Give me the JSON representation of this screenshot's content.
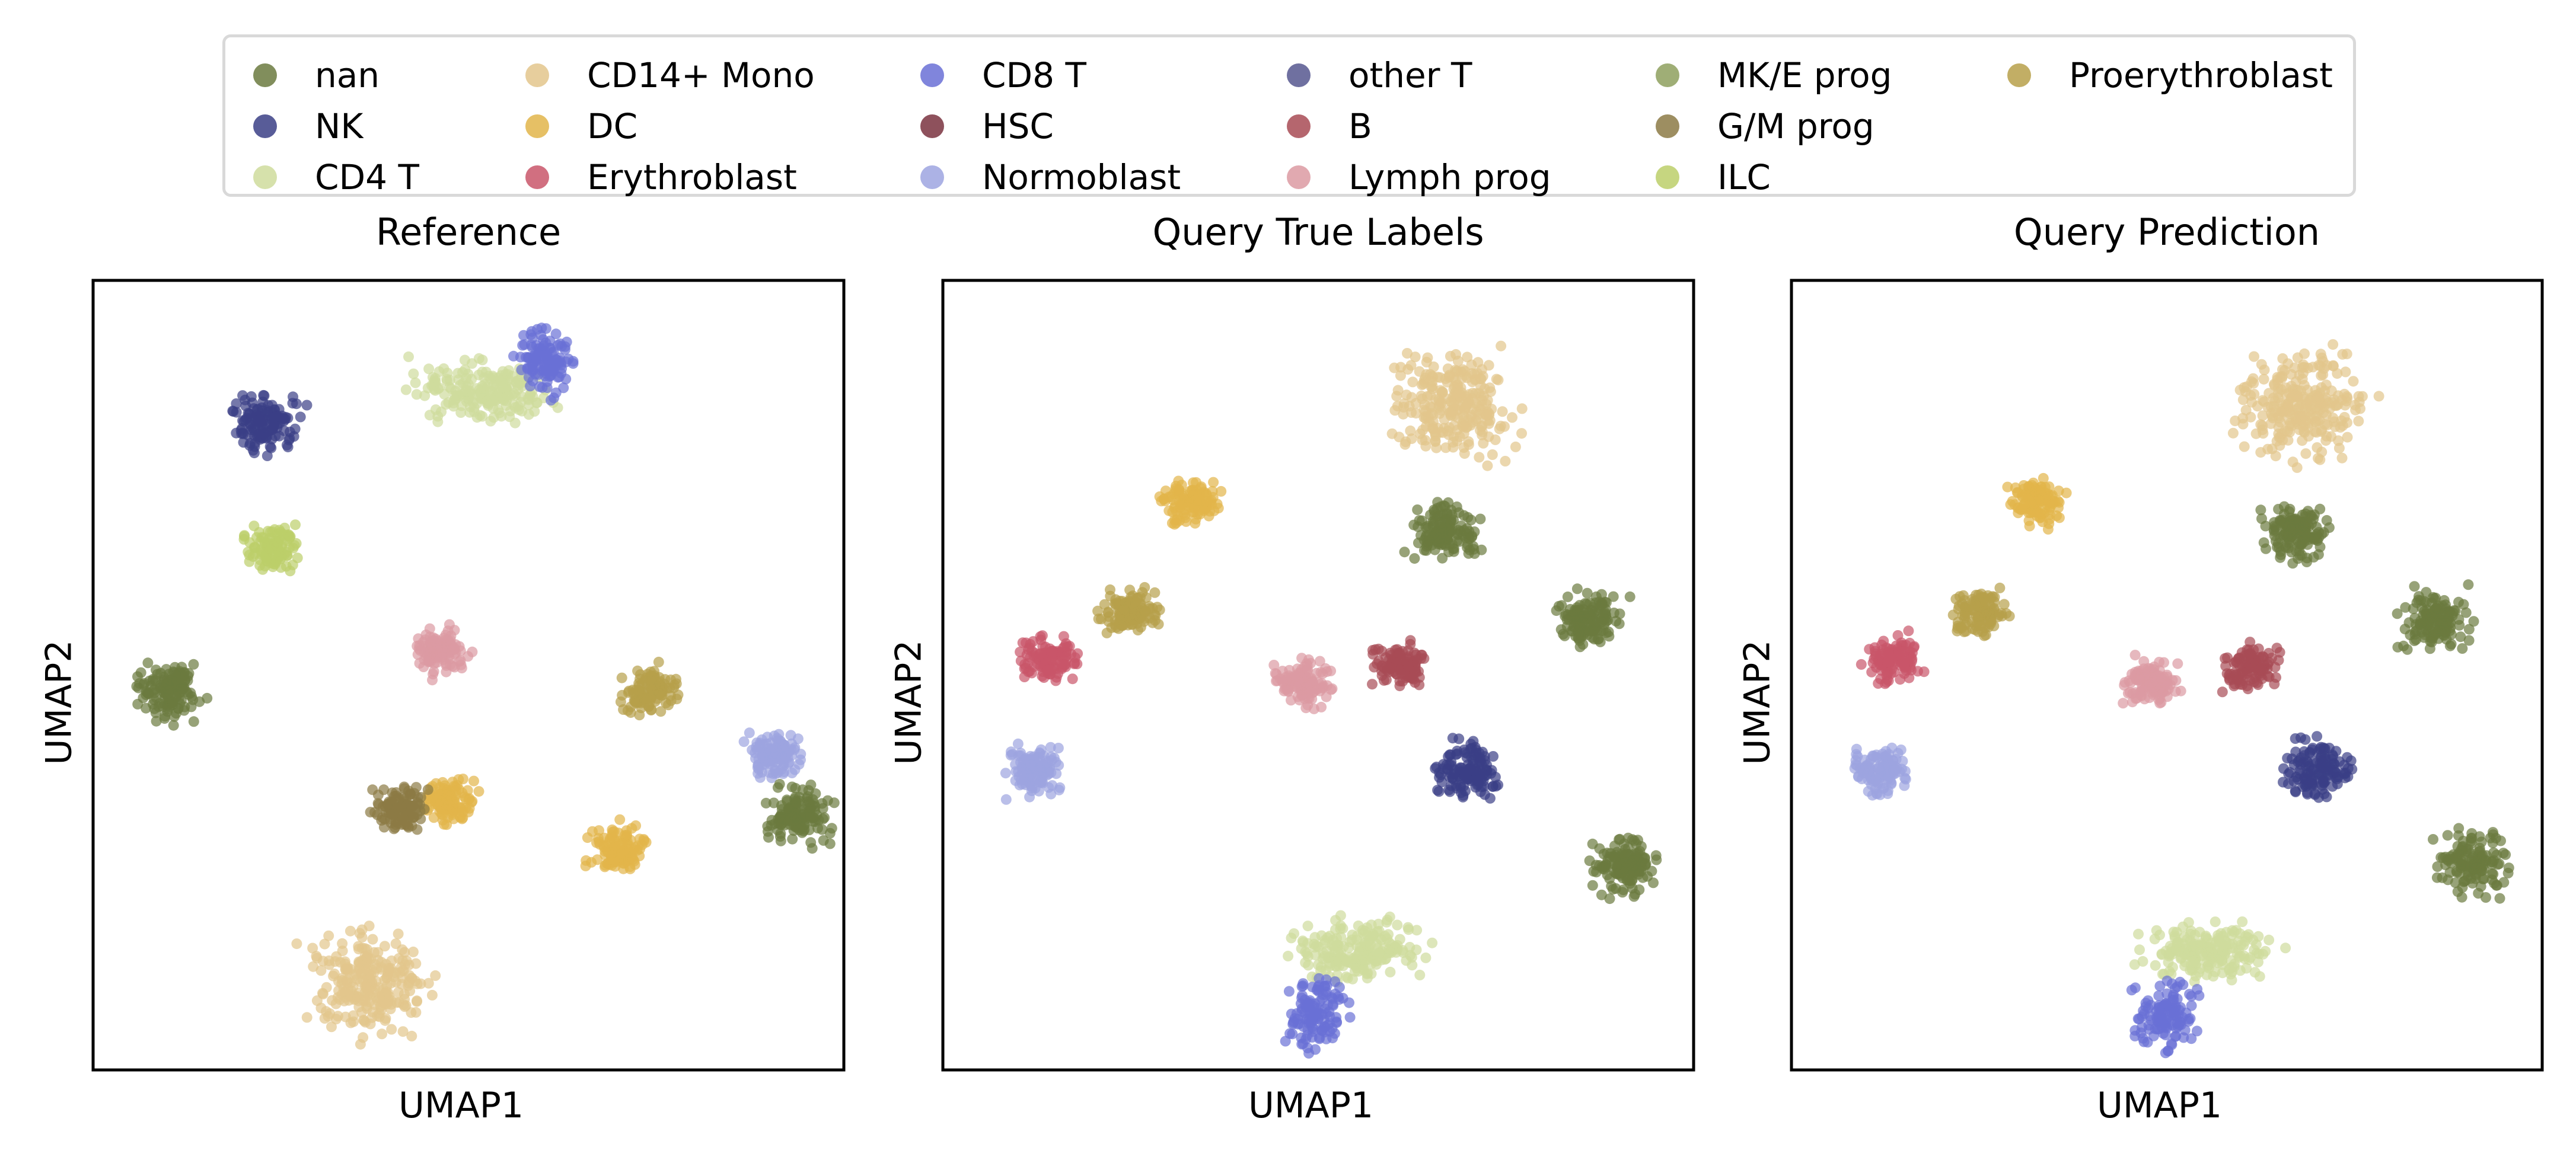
{
  "legend": [
    {
      "label": "nan",
      "color": "#6b7a3f"
    },
    {
      "label": "NK",
      "color": "#3b3f86"
    },
    {
      "label": "CD4 T",
      "color": "#cfdc9c"
    },
    {
      "label": "CD14+ Mono",
      "color": "#e3c68c"
    },
    {
      "label": "DC",
      "color": "#e2b54a"
    },
    {
      "label": "Erythroblast",
      "color": "#c9566a"
    },
    {
      "label": "CD8 T",
      "color": "#6a70d6"
    },
    {
      "label": "HSC",
      "color": "#7a3340"
    },
    {
      "label": "Normoblast",
      "color": "#9da4e0"
    },
    {
      "label": "other T",
      "color": "#56578f"
    },
    {
      "label": "B",
      "color": "#a84b55"
    },
    {
      "label": "Lymph prog",
      "color": "#dc9aa2"
    },
    {
      "label": "MK/E prog",
      "color": "#8ea05e"
    },
    {
      "label": "G/M prog",
      "color": "#8c7a45"
    },
    {
      "label": "ILC",
      "color": "#bccf6a"
    },
    {
      "label": "Proerythroblast",
      "color": "#b7a04a"
    }
  ],
  "chart_data": [
    {
      "type": "scatter",
      "title": "Reference",
      "xlabel": "UMAP1",
      "ylabel": "UMAP2",
      "clusters": [
        {
          "label": "CD4 T",
          "x": 0.52,
          "y": 0.86
        },
        {
          "label": "CD8 T",
          "x": 0.6,
          "y": 0.9
        },
        {
          "label": "NK",
          "x": 0.23,
          "y": 0.82
        },
        {
          "label": "ILC",
          "x": 0.24,
          "y": 0.66
        },
        {
          "label": "nan",
          "x": 0.1,
          "y": 0.48
        },
        {
          "label": "Lymph prog",
          "x": 0.46,
          "y": 0.53
        },
        {
          "label": "Proerythroblast",
          "x": 0.74,
          "y": 0.48
        },
        {
          "label": "Normoblast",
          "x": 0.91,
          "y": 0.4
        },
        {
          "label": "nan",
          "x": 0.94,
          "y": 0.32
        },
        {
          "label": "CD14+ Mono",
          "x": 0.37,
          "y": 0.11
        },
        {
          "label": "DC",
          "x": 0.47,
          "y": 0.34
        },
        {
          "label": "DC",
          "x": 0.7,
          "y": 0.28
        },
        {
          "label": "G/M prog",
          "x": 0.41,
          "y": 0.33
        }
      ]
    },
    {
      "type": "scatter",
      "title": "Query True Labels",
      "xlabel": "UMAP1",
      "ylabel": "UMAP2",
      "clusters": [
        {
          "label": "CD14+ Mono",
          "x": 0.68,
          "y": 0.84
        },
        {
          "label": "nan",
          "x": 0.67,
          "y": 0.68
        },
        {
          "label": "DC",
          "x": 0.33,
          "y": 0.72
        },
        {
          "label": "Proerythroblast",
          "x": 0.25,
          "y": 0.58
        },
        {
          "label": "Erythroblast",
          "x": 0.14,
          "y": 0.52
        },
        {
          "label": "Normoblast",
          "x": 0.12,
          "y": 0.38
        },
        {
          "label": "Lymph prog",
          "x": 0.48,
          "y": 0.49
        },
        {
          "label": "B",
          "x": 0.61,
          "y": 0.51
        },
        {
          "label": "nan",
          "x": 0.86,
          "y": 0.57
        },
        {
          "label": "NK",
          "x": 0.7,
          "y": 0.38
        },
        {
          "label": "CD4 T",
          "x": 0.55,
          "y": 0.15
        },
        {
          "label": "CD8 T",
          "x": 0.5,
          "y": 0.07
        },
        {
          "label": "nan",
          "x": 0.91,
          "y": 0.26
        }
      ]
    },
    {
      "type": "scatter",
      "title": "Query Prediction",
      "xlabel": "UMAP1",
      "ylabel": "UMAP2",
      "clusters": [
        {
          "label": "CD14+ Mono",
          "x": 0.68,
          "y": 0.84
        },
        {
          "label": "nan",
          "x": 0.67,
          "y": 0.68
        },
        {
          "label": "DC",
          "x": 0.33,
          "y": 0.72
        },
        {
          "label": "Proerythroblast",
          "x": 0.25,
          "y": 0.58
        },
        {
          "label": "Erythroblast",
          "x": 0.14,
          "y": 0.52
        },
        {
          "label": "Normoblast",
          "x": 0.12,
          "y": 0.38
        },
        {
          "label": "Lymph prog",
          "x": 0.48,
          "y": 0.49
        },
        {
          "label": "B",
          "x": 0.61,
          "y": 0.51
        },
        {
          "label": "nan",
          "x": 0.86,
          "y": 0.57
        },
        {
          "label": "NK",
          "x": 0.7,
          "y": 0.38
        },
        {
          "label": "CD4 T",
          "x": 0.55,
          "y": 0.15
        },
        {
          "label": "CD8 T",
          "x": 0.5,
          "y": 0.07
        },
        {
          "label": "nan",
          "x": 0.91,
          "y": 0.26
        }
      ]
    }
  ]
}
